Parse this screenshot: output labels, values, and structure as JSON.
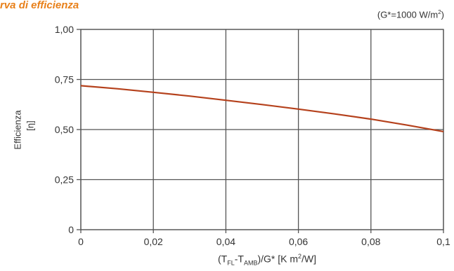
{
  "header": {
    "title": "rva di efficienza",
    "condition_prefix": "(G*=1000 W/m",
    "condition_sup": "2",
    "condition_suffix": ")"
  },
  "axis_labels": {
    "x_prefix": "(T",
    "x_sub1": "FL",
    "x_mid": "-T",
    "x_sub2": "AMB",
    "x_mid2": ")/G* [K m",
    "x_sup": "2",
    "x_suffix": "/W]",
    "y_word": "Efficienza",
    "y_symbol": "[η]"
  },
  "chart_data": {
    "type": "line",
    "x_ticks": [
      "0",
      "0,02",
      "0,04",
      "0,06",
      "0,08",
      "0,1"
    ],
    "y_ticks": [
      "0",
      "0,25",
      "0,50",
      "0,75",
      "1,00"
    ],
    "xlim": [
      0,
      0.1
    ],
    "ylim": [
      0,
      1.0
    ],
    "grid": true,
    "line_color": "#b5411c",
    "series": [
      {
        "x": [
          0,
          0.01,
          0.02,
          0.03,
          0.04,
          0.05,
          0.06,
          0.07,
          0.08,
          0.09,
          0.1
        ],
        "values": [
          0.719,
          0.704,
          0.686,
          0.667,
          0.646,
          0.625,
          0.602,
          0.578,
          0.552,
          0.522,
          0.49
        ]
      }
    ]
  }
}
